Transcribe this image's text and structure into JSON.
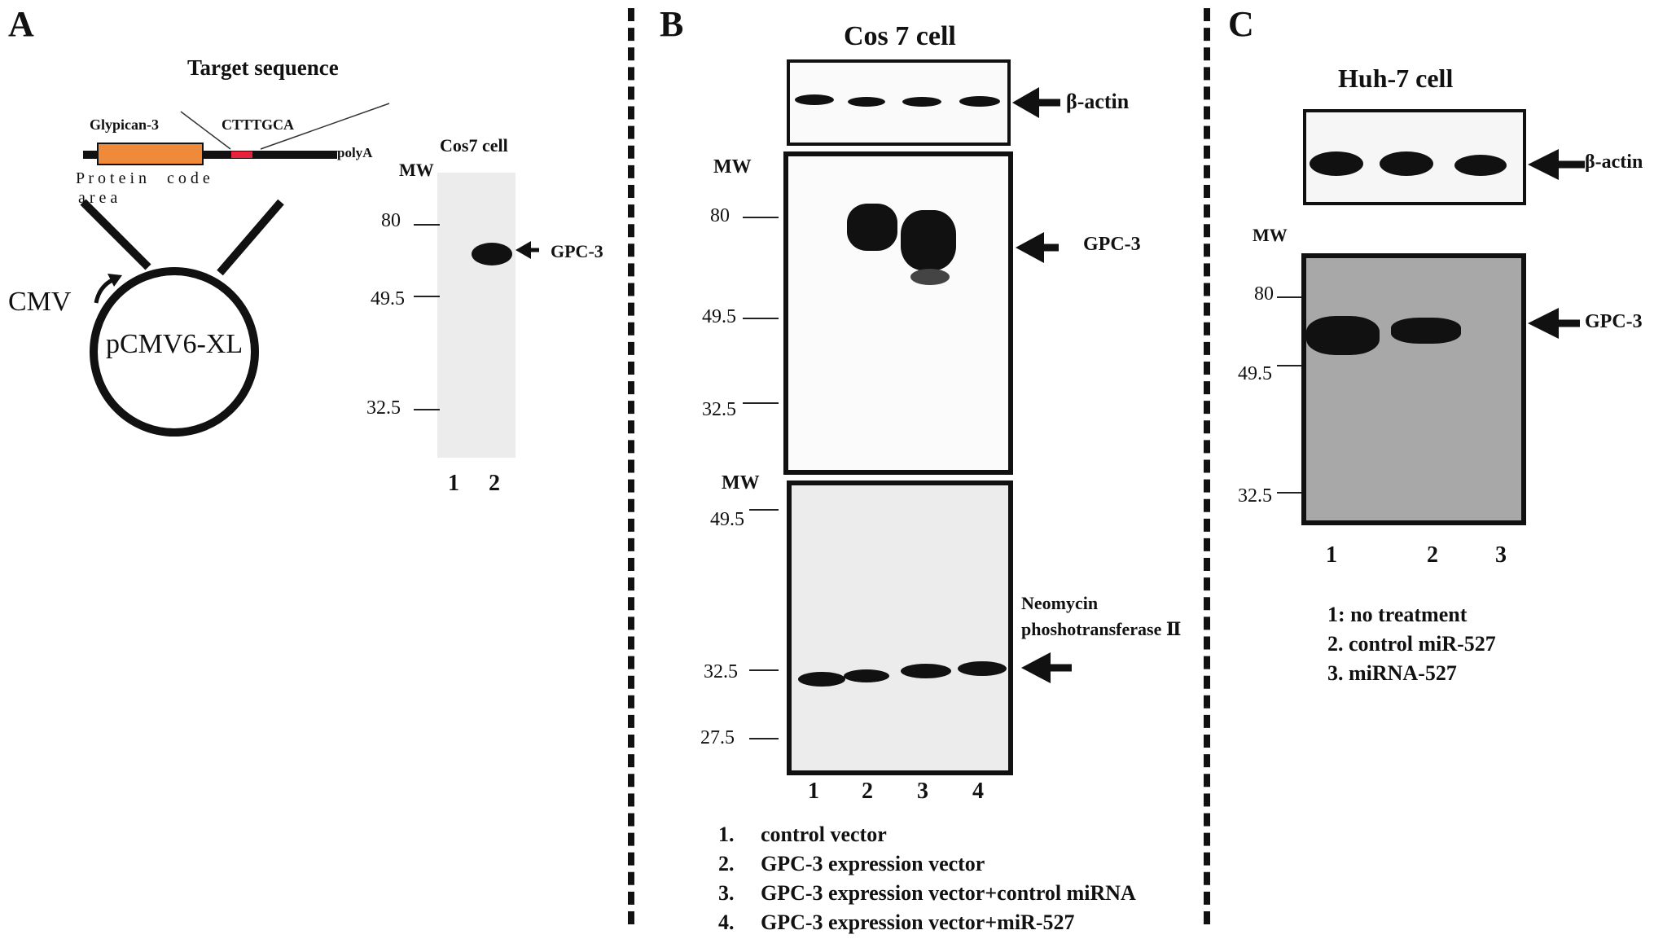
{
  "panels": {
    "a": {
      "letter": "A",
      "target_sequence_title": "Target sequence",
      "gene_label": "Glypican-3",
      "sequence": "CTTTGCA",
      "polya": "polyA",
      "protein_code_area": "Protein code area",
      "protein_line": "P r o t e i n     c o d e",
      "area_line": "a r e a",
      "promoter": "CMV",
      "plasmid": "pCMV6-XL",
      "blot_title": "Cos7 cell",
      "mw_label": "MW",
      "mw_markers": [
        "80",
        "49.5",
        "32.5"
      ],
      "target_label": "GPC-3",
      "lanes": [
        "1",
        "2"
      ],
      "colors": {
        "gene_box": "#ef8a3a",
        "target_site": "#e8213d"
      }
    },
    "b": {
      "letter": "B",
      "title": "Cos 7 cell",
      "actin_label": "β-actin",
      "mw_label_top": "MW",
      "mw_markers_top": [
        "80",
        "49.5",
        "32.5"
      ],
      "gpc3_label": "GPC-3",
      "mw_label_bottom": "MW",
      "mw_markers_bottom": [
        "49.5",
        "32.5",
        "27.5"
      ],
      "neo_label_line1": "Neomycin",
      "neo_label_line2": "phoshotransferase Ⅱ",
      "lanes": [
        "1",
        "2",
        "3",
        "4"
      ],
      "legend": [
        {
          "num": "1.",
          "text": "control vector"
        },
        {
          "num": "2.",
          "text": "GPC-3 expression vector"
        },
        {
          "num": "3.",
          "text": "GPC-3 expression vector+control miRNA"
        },
        {
          "num": "4.",
          "text": "GPC-3 expression vector+miR-527"
        }
      ]
    },
    "c": {
      "letter": "C",
      "title": "Huh-7 cell",
      "actin_label": "β-actin",
      "mw_label": "MW",
      "mw_markers": [
        "80",
        "49.5",
        "32.5"
      ],
      "gpc3_label": "GPC-3",
      "lanes": [
        "1",
        "2",
        "3"
      ],
      "legend": [
        "1: no treatment",
        "2. control miR-527",
        "3. miRNA-527"
      ]
    }
  }
}
